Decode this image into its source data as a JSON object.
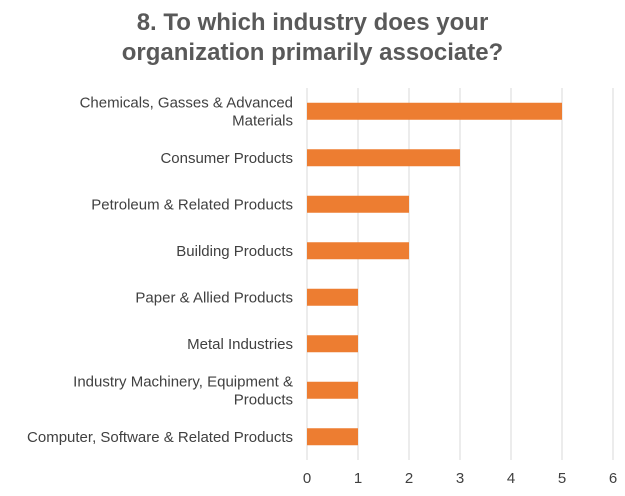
{
  "chart_data": {
    "type": "bar",
    "orientation": "horizontal",
    "title": [
      "8. To which industry does your",
      "organization primarily associate?"
    ],
    "categories": [
      [
        "Chemicals, Gasses & Advanced",
        "Materials"
      ],
      [
        "Consumer Products"
      ],
      [
        "Petroleum & Related Products"
      ],
      [
        "Building Products"
      ],
      [
        "Paper & Allied Products"
      ],
      [
        "Metal Industries"
      ],
      [
        "Industry Machinery, Equipment &",
        "Products"
      ],
      [
        "Computer, Software & Related Products"
      ]
    ],
    "values": [
      5,
      3,
      2,
      2,
      1,
      1,
      1,
      1
    ],
    "xlim": [
      0,
      6
    ],
    "xticks": [
      "0",
      "1",
      "2",
      "3",
      "4",
      "5",
      "6"
    ],
    "grid": "vertical",
    "bar_color": "#ED7D31",
    "grid_color": "#D9D9D9"
  }
}
